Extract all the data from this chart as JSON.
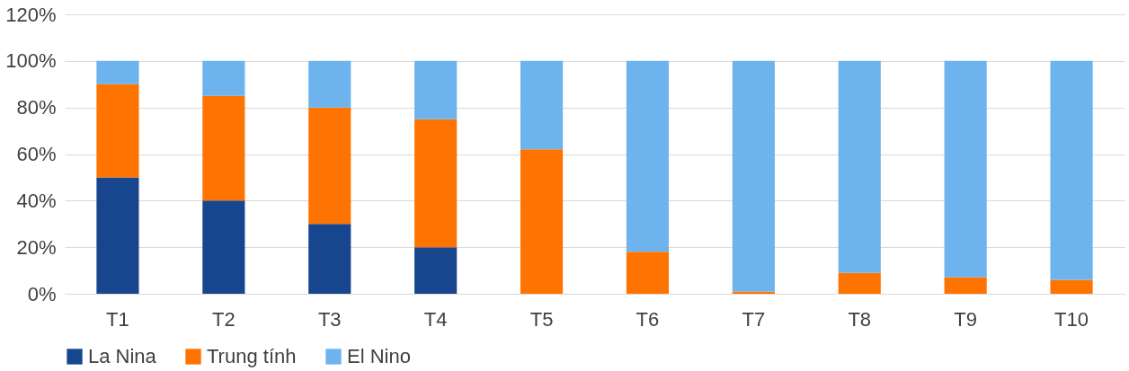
{
  "chart_data": {
    "type": "bar",
    "stacked": true,
    "categories": [
      "T1",
      "T2",
      "T3",
      "T4",
      "T5",
      "T6",
      "T7",
      "T8",
      "T9",
      "T10"
    ],
    "series": [
      {
        "name": "La Nina",
        "color": "#17468f",
        "values": [
          50,
          40,
          30,
          20,
          0,
          0,
          0,
          0,
          0,
          0
        ]
      },
      {
        "name": "Trung tính",
        "color": "#ff7300",
        "values": [
          40,
          45,
          50,
          55,
          62,
          18,
          1,
          9,
          7,
          6
        ]
      },
      {
        "name": "El Nino",
        "color": "#6db3ee",
        "values": [
          10,
          15,
          20,
          25,
          38,
          82,
          99,
          91,
          93,
          94
        ]
      }
    ],
    "ylim": [
      0,
      120
    ],
    "yticks": [
      {
        "value": 0,
        "label": "0%"
      },
      {
        "value": 20,
        "label": "20%"
      },
      {
        "value": 40,
        "label": "40%"
      },
      {
        "value": 60,
        "label": "60%"
      },
      {
        "value": 80,
        "label": "80%"
      },
      {
        "value": 100,
        "label": "100%"
      },
      {
        "value": 120,
        "label": "120%"
      }
    ],
    "grid": "y",
    "legend": "bottom"
  }
}
